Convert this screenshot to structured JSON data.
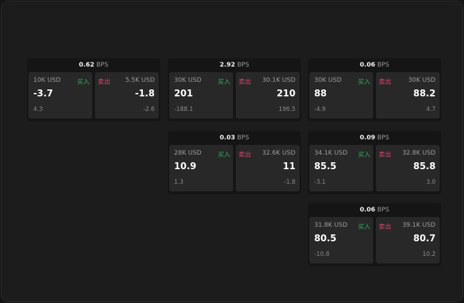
{
  "unit": "BPS",
  "buy_label": "买入",
  "sell_label": "卖出",
  "colors": {
    "buy": "#2fae5e",
    "sell": "#e0436f"
  },
  "cards": [
    {
      "spread": "0.62",
      "buy": {
        "size": "10K USD",
        "price": "-3.7",
        "change": "4.3"
      },
      "sell": {
        "size": "5.5K USD",
        "price": "-1.8",
        "change": "-2.6"
      }
    },
    {
      "spread": "2.92",
      "buy": {
        "size": "30K USD",
        "price": "201",
        "change": "-188.1"
      },
      "sell": {
        "size": "30.1K USD",
        "price": "210",
        "change": "196.5"
      }
    },
    {
      "spread": "0.06",
      "buy": {
        "size": "30K USD",
        "price": "88",
        "change": "-4.9"
      },
      "sell": {
        "size": "30K USD",
        "price": "88.2",
        "change": "4.7"
      }
    },
    {
      "spread": "0.03",
      "buy": {
        "size": "28K USD",
        "price": "10.9",
        "change": "1.3"
      },
      "sell": {
        "size": "32.6K USD",
        "price": "11",
        "change": "-1.8"
      }
    },
    {
      "spread": "0.09",
      "buy": {
        "size": "34.1K USD",
        "price": "85.5",
        "change": "-3.1"
      },
      "sell": {
        "size": "32.8K USD",
        "price": "85.8",
        "change": "3.0"
      }
    },
    {
      "spread": "0.06",
      "buy": {
        "size": "31.8K USD",
        "price": "80.5",
        "change": "-10.8"
      },
      "sell": {
        "size": "39.1K USD",
        "price": "80.7",
        "change": "10.2"
      }
    }
  ]
}
